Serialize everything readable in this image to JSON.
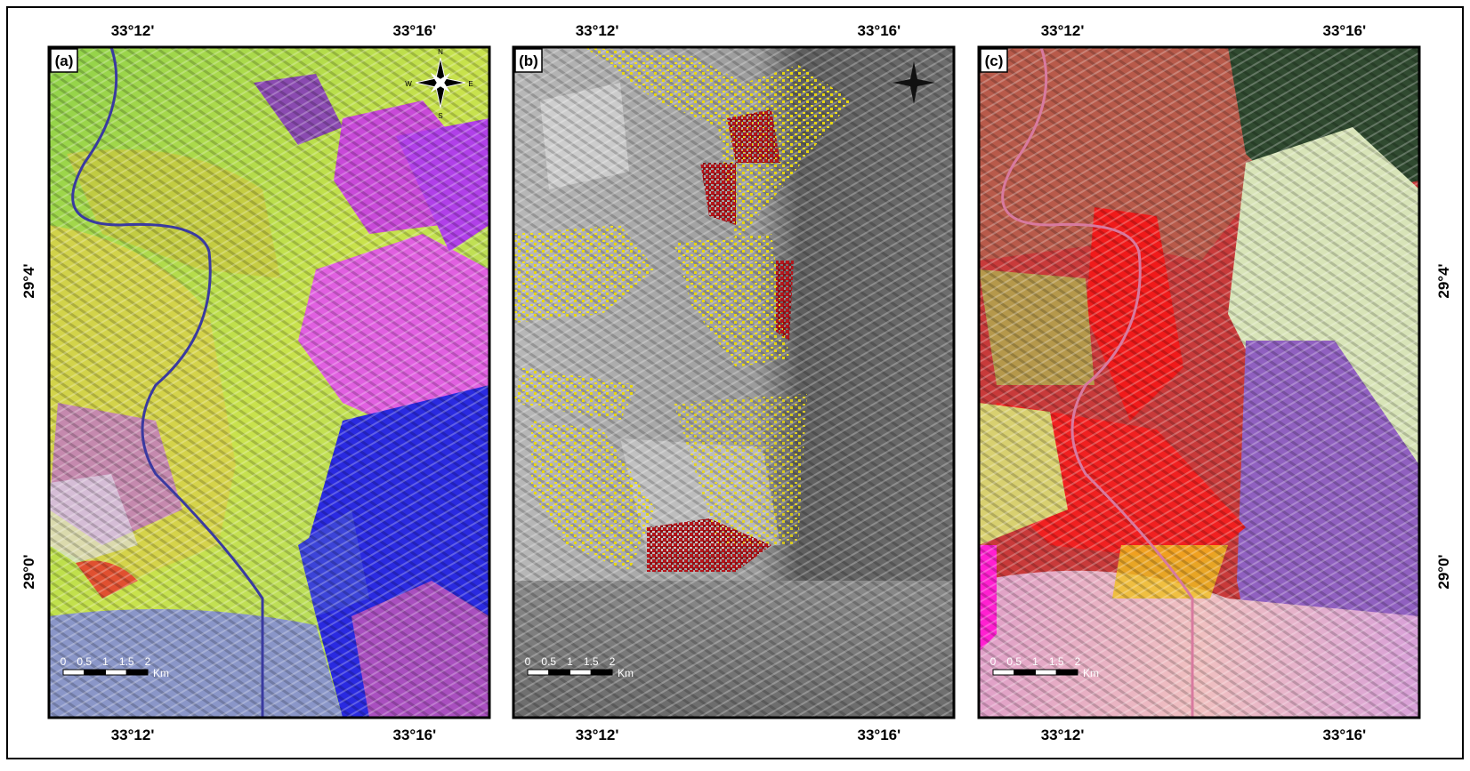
{
  "panels": [
    {
      "label": "(a)"
    },
    {
      "label": "(b)"
    },
    {
      "label": "(c)"
    }
  ],
  "longitude_labels": [
    "33°12'",
    "33°16'"
  ],
  "latitude_labels": [
    "29°4'",
    "29°0'"
  ],
  "scale_bar": {
    "ticks": [
      0,
      0.5,
      1,
      1.5,
      2
    ],
    "unit": "Km"
  },
  "compass": {
    "north": "N",
    "east": "E",
    "south": "S",
    "west": "W"
  }
}
